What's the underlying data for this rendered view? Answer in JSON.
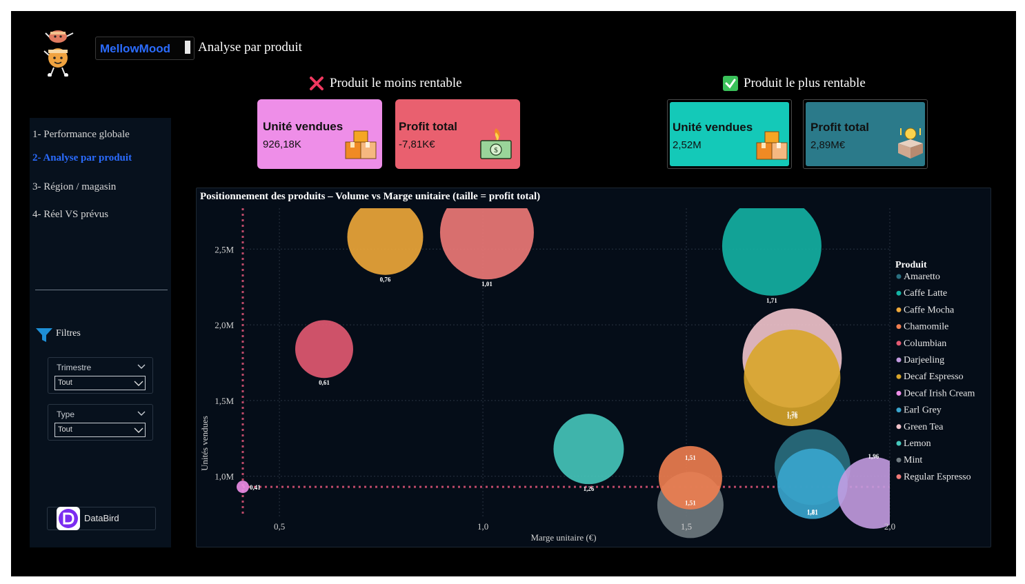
{
  "header": {
    "brand": "MellowMood",
    "page_title": "Analyse par produit"
  },
  "least_profitable": {
    "title": "Produit le moins rentable",
    "units": {
      "label": "Unité vendues",
      "value": "926,18K",
      "color": "#ee8ee8"
    },
    "profit": {
      "label": "Profit total",
      "value": "-7,81K€",
      "color": "#e9606f"
    }
  },
  "most_profitable": {
    "title": "Produit le plus rentable",
    "units": {
      "label": "Unité vendues",
      "value": "2,52M",
      "color": "#14c9b8"
    },
    "profit": {
      "label": "Profit total",
      "value": "2,89M€",
      "color": "#2b7a8a"
    }
  },
  "nav": {
    "items": [
      {
        "label": "1- Performance globale",
        "active": false
      },
      {
        "label": "2- Analyse par produit",
        "active": true
      },
      {
        "label": "3- Région / magasin",
        "active": false
      },
      {
        "label": "4- Réel VS prévus",
        "active": false
      }
    ]
  },
  "filters": {
    "title": "Filtres",
    "trimestre": {
      "label": "Trimestre",
      "value": "Tout"
    },
    "type": {
      "label": "Type",
      "value": "Tout"
    }
  },
  "footer": {
    "databird_label": "DataBird"
  },
  "chart_data": {
    "type": "scatter",
    "title": "Positionnement des produits – Volume vs Marge unitaire (taille = profit total)",
    "xlabel": "Marge unitaire (€)",
    "ylabel": "Unités vendues",
    "xlim": [
      0.41,
      2.0
    ],
    "ylim": [
      0.73,
      2.77
    ],
    "x_ticks": [
      0.5,
      1.0,
      1.5,
      2.0
    ],
    "x_tick_labels": [
      "0,5",
      "1,0",
      "1,5",
      "2,0"
    ],
    "y_ticks": [
      1.0,
      1.5,
      2.0,
      2.5
    ],
    "y_tick_labels": [
      "1,0M",
      "1,5M",
      "2,0M",
      "2,5M"
    ],
    "y_unit": "millions",
    "reference_x": 0.41,
    "reference_y": 0.93,
    "grid": true,
    "legend_title": "Produit",
    "legend_position": "right",
    "series": [
      {
        "name": "Amaretto",
        "color": "#2a6f80",
        "points": [
          {
            "x": 1.81,
            "y": 1.06,
            "r": 55,
            "label": "1,81"
          }
        ]
      },
      {
        "name": "Caffe Latte",
        "color": "#14b3a4",
        "points": [
          {
            "x": 1.71,
            "y": 2.52,
            "r": 72,
            "label": "1,71"
          }
        ]
      },
      {
        "name": "Caffe Mocha",
        "color": "#f0a93a",
        "points": [
          {
            "x": 0.76,
            "y": 2.58,
            "r": 55,
            "label": "0,76"
          }
        ]
      },
      {
        "name": "Chamomile",
        "color": "#f07e50",
        "points": [
          {
            "x": 1.51,
            "y": 0.99,
            "r": 46,
            "label": "1,51"
          }
        ]
      },
      {
        "name": "Columbian",
        "color": "#e45a72",
        "points": [
          {
            "x": 0.61,
            "y": 1.84,
            "r": 42,
            "label": "0,61"
          }
        ]
      },
      {
        "name": "Darjeeling",
        "color": "#c39be0",
        "points": [
          {
            "x": 1.96,
            "y": 0.89,
            "r": 52,
            "label": "1,96"
          }
        ]
      },
      {
        "name": "Decaf Espresso",
        "color": "#d8a52a",
        "points": [
          {
            "x": 1.76,
            "y": 1.65,
            "r": 70,
            "label": "1,76"
          }
        ]
      },
      {
        "name": "Decaf Irish Cream",
        "color": "#ee8ee8",
        "points": [
          {
            "x": 0.41,
            "y": 0.93,
            "r": 9,
            "label": "0,41"
          }
        ]
      },
      {
        "name": "Earl Grey",
        "color": "#3aa6cf",
        "points": [
          {
            "x": 1.81,
            "y": 0.95,
            "r": 51,
            "label": "1,81"
          }
        ]
      },
      {
        "name": "Green Tea",
        "color": "#f2c4cc",
        "points": [
          {
            "x": 1.76,
            "y": 1.78,
            "r": 72,
            "label": "1,76"
          }
        ]
      },
      {
        "name": "Lemon",
        "color": "#46c7bb",
        "points": [
          {
            "x": 1.26,
            "y": 1.18,
            "r": 51,
            "label": "1,26"
          }
        ]
      },
      {
        "name": "Mint",
        "color": "#6f7a80",
        "points": [
          {
            "x": 1.51,
            "y": 0.81,
            "r": 48,
            "label": "1,51"
          }
        ]
      },
      {
        "name": "Regular Espresso",
        "color": "#f07a78",
        "points": [
          {
            "x": 1.01,
            "y": 2.61,
            "r": 68,
            "label": "1,01"
          }
        ]
      }
    ]
  }
}
